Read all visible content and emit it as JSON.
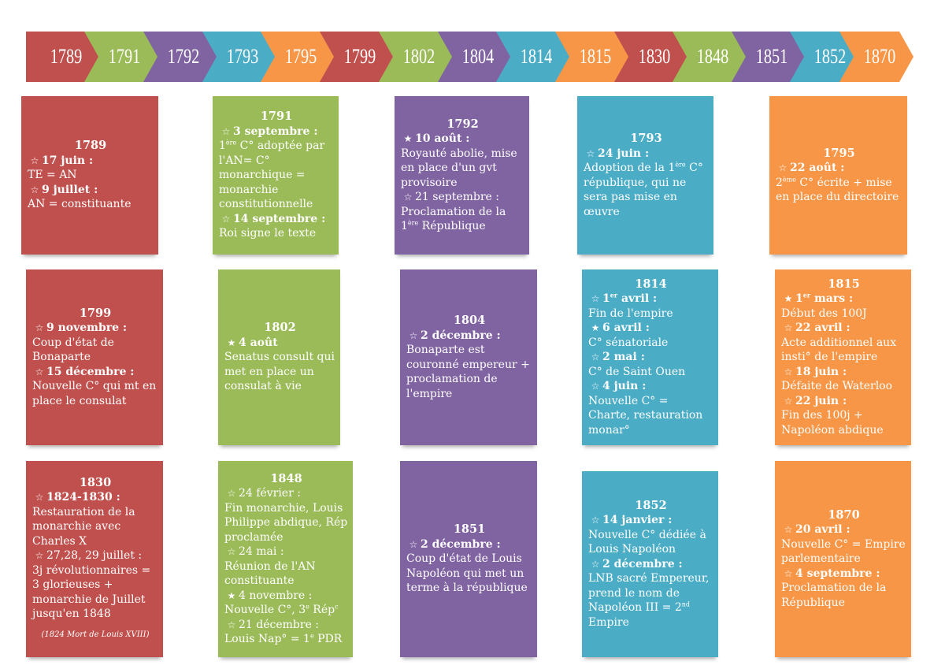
{
  "timeline": [
    {
      "year": "1789",
      "color": "#c0504d"
    },
    {
      "year": "1791",
      "color": "#9bbb59"
    },
    {
      "year": "1792",
      "color": "#8064a2"
    },
    {
      "year": "1793",
      "color": "#4bacc6"
    },
    {
      "year": "1795",
      "color": "#f79646"
    },
    {
      "year": "1799",
      "color": "#c0504d"
    },
    {
      "year": "1802",
      "color": "#9bbb59"
    },
    {
      "year": "1804",
      "color": "#8064a2"
    },
    {
      "year": "1814",
      "color": "#4bacc6"
    },
    {
      "year": "1815",
      "color": "#f79646"
    },
    {
      "year": "1830",
      "color": "#c0504d"
    },
    {
      "year": "1848",
      "color": "#9bbb59"
    },
    {
      "year": "1851",
      "color": "#8064a2"
    },
    {
      "year": "1852",
      "color": "#4bacc6"
    },
    {
      "year": "1870",
      "color": "#f79646"
    }
  ],
  "cards": {
    "c1789": {
      "year": "1789",
      "e1": {
        "head": "17 juin :",
        "text": "TE = AN"
      },
      "e2": {
        "head": "9 juillet :",
        "text": "AN = constituante"
      }
    },
    "c1791": {
      "year": "1791",
      "e1": {
        "head": "3 septembre :",
        "sup": "ère",
        "pre": "1",
        "text": " C° adoptée par l'AN= C° monarchique = monarchie constitutionnelle"
      },
      "e2": {
        "head": "14 septembre :",
        "text": "Roi signe le texte"
      }
    },
    "c1792": {
      "year": "1792",
      "e1": {
        "head": "10 août :",
        "text": "Royauté abolie, mise en place d'un gvt provisoire"
      },
      "e2": {
        "head": "21 septembre :",
        "text": "Proclamation de la ",
        "pre": "1",
        "sup": "ère",
        "post": " République"
      }
    },
    "c1793": {
      "year": "1793",
      "e1": {
        "head": "24 juin :",
        "text": "Adoption de la ",
        "pre": "1",
        "sup": "ère",
        "post": " C° république, qui ne sera pas mise en œuvre"
      }
    },
    "c1795": {
      "year": "1795",
      "e1": {
        "head": "22 août :",
        "pre": "2",
        "sup": "ème",
        "text": " C° écrite + mise en place du directoire"
      }
    },
    "c1799": {
      "year": "1799",
      "e1": {
        "head": "9 novembre :",
        "text": "Coup d'état de Bonaparte"
      },
      "e2": {
        "head": "15 décembre :",
        "text": "Nouvelle C° qui mt en place le consulat"
      }
    },
    "c1802": {
      "year": "1802",
      "e1": {
        "head": "4 août",
        "text": "Senatus consult qui met en place un consulat à vie"
      }
    },
    "c1804": {
      "year": "1804",
      "e1": {
        "head": "2 décembre :",
        "text": "Bonaparte est couronné empereur + proclamation de l'empire"
      }
    },
    "c1814": {
      "year": "1814",
      "e1": {
        "head": "avril :",
        "pre": "1",
        "sup": "er",
        "text": "Fin de l'empire"
      },
      "e2": {
        "head": "6 avril :",
        "text": "C° sénatoriale"
      },
      "e3": {
        "head": "2 mai :",
        "text": "C° de Saint Ouen"
      },
      "e4": {
        "head": "4 juin :",
        "text": "Nouvelle C° = Charte, restauration monar°"
      }
    },
    "c1815": {
      "year": "1815",
      "e1": {
        "head": "mars :",
        "pre": "1",
        "sup": "er",
        "text": "Début des 100J"
      },
      "e2": {
        "head": "22 avril :",
        "text": "Acte additionnel aux insti° de l'empire"
      },
      "e3": {
        "head": "18 juin :",
        "text": "Défaite de Waterloo"
      },
      "e4": {
        "head": "22 juin :",
        "text": " Fin des 100j + Napoléon abdique"
      }
    },
    "c1830": {
      "year": "1830",
      "e1": {
        "head": "1824-1830 :",
        "text": "Restauration de la monarchie avec Charles X"
      },
      "e2": {
        "head": "27,28, 29 juillet :",
        "text": "3j révolutionnaires = 3 glorieuses + monarchie de Juillet jusqu'en 1848"
      },
      "note": "(1824 Mort de Louis XVIII)"
    },
    "c1848": {
      "year": "1848",
      "e1": {
        "head": "24 février :",
        "text": "Fin monarchie, Louis Philippe abdique, Rép proclamée"
      },
      "e2": {
        "head": "24 mai :",
        "text": "Réunion de l'AN constituante"
      },
      "e3": {
        "head": "4 novembre :",
        "text": "Nouvelle C°, 3",
        "sup": "e",
        "post": " Rép",
        "sup2": "c"
      },
      "e4": {
        "head": "21 décembre :",
        "text": "Louis Nap° = 1",
        "sup": "e",
        "post": " PDR"
      }
    },
    "c1851": {
      "year": "1851",
      "e1": {
        "head": "2 décembre :",
        "text": "Coup d'état de Louis Napoléon qui met un terme à la république"
      }
    },
    "c1852": {
      "year": "1852",
      "e1": {
        "head": "14 janvier :",
        "text": "Nouvelle C° dédiée à Louis Napoléon"
      },
      "e2": {
        "head": "2 décembre :",
        "text": "LNB sacré Empereur, prend le nom de Napoléon III = 2",
        "sup": "nd",
        "post": " Empire"
      }
    },
    "c1870": {
      "year": "1870",
      "e1": {
        "head": "20 avril :",
        "text": "Nouvelle C° = Empire parlementaire"
      },
      "e2": {
        "head": "4 septembre :",
        "text": "Proclamation de la République"
      }
    }
  },
  "icons": {
    "hollow_star": "☆",
    "filled_star": "★"
  }
}
